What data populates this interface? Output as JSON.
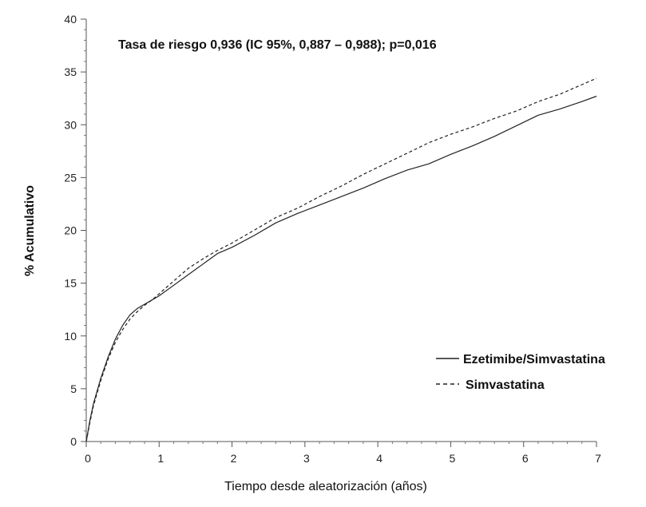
{
  "chart_data": {
    "type": "line",
    "title": "",
    "annotation": "Tasa de riesgo 0,936 (IC 95%, 0,887 – 0,988); p=0,016",
    "xlabel": "Tiempo desde aleatorización (años)",
    "ylabel": "% Acumulativo",
    "xlim": [
      0,
      7
    ],
    "ylim": [
      0,
      40
    ],
    "xticks": [
      0,
      1,
      2,
      3,
      4,
      5,
      6,
      7
    ],
    "xtick_labels": [
      "0",
      "1",
      "2",
      "3",
      "4",
      "5",
      "6",
      "7"
    ],
    "yticks": [
      0,
      5,
      10,
      15,
      20,
      25,
      30,
      35,
      40
    ],
    "ytick_labels": [
      "0",
      "5",
      "10",
      "15",
      "20",
      "25",
      "30",
      "35",
      "40"
    ],
    "grid": false,
    "legend_position": "lower-right",
    "series": [
      {
        "name": "Ezetimibe/Simvastatina",
        "style": "solid",
        "color": "#222222",
        "x": [
          0,
          0.05,
          0.1,
          0.2,
          0.3,
          0.4,
          0.5,
          0.6,
          0.7,
          0.8,
          0.9,
          1.0,
          1.2,
          1.4,
          1.6,
          1.8,
          2.0,
          2.3,
          2.6,
          2.9,
          3.2,
          3.5,
          3.8,
          4.1,
          4.4,
          4.7,
          5.0,
          5.3,
          5.6,
          5.9,
          6.2,
          6.5,
          6.8,
          7.0
        ],
        "y": [
          0,
          2.0,
          3.6,
          6.0,
          8.0,
          9.7,
          11.0,
          12.0,
          12.6,
          13.0,
          13.4,
          13.8,
          14.8,
          15.8,
          16.8,
          17.8,
          18.4,
          19.5,
          20.7,
          21.6,
          22.4,
          23.2,
          24.0,
          24.9,
          25.7,
          26.3,
          27.2,
          28.0,
          28.9,
          29.9,
          30.9,
          31.5,
          32.2,
          32.7
        ]
      },
      {
        "name": "Simvastatina",
        "style": "dashed",
        "color": "#222222",
        "x": [
          0,
          0.05,
          0.1,
          0.2,
          0.3,
          0.4,
          0.5,
          0.6,
          0.7,
          0.8,
          0.9,
          1.0,
          1.2,
          1.4,
          1.6,
          1.8,
          2.0,
          2.3,
          2.6,
          2.9,
          3.2,
          3.5,
          3.8,
          4.1,
          4.4,
          4.7,
          5.0,
          5.3,
          5.6,
          5.9,
          6.2,
          6.5,
          6.8,
          7.0
        ],
        "y": [
          0,
          1.8,
          3.4,
          5.8,
          7.8,
          9.4,
          10.6,
          11.6,
          12.3,
          12.9,
          13.4,
          14.0,
          15.2,
          16.4,
          17.3,
          18.1,
          18.8,
          20.0,
          21.2,
          22.1,
          23.2,
          24.2,
          25.3,
          26.3,
          27.3,
          28.3,
          29.1,
          29.8,
          30.6,
          31.3,
          32.2,
          32.9,
          33.8,
          34.4
        ]
      }
    ]
  }
}
